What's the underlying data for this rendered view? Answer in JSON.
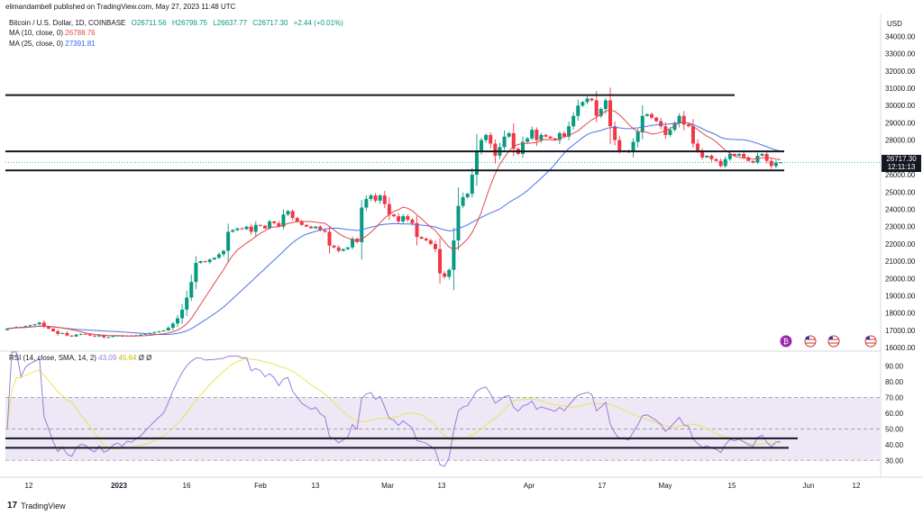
{
  "header": {
    "published": "elimandambell published on TradingView.com, May 27, 2023 11:48 UTC",
    "symbol": "Bitcoin / U.S. Dollar, 1D, COINBASE",
    "ohlc": {
      "open": "O26711.56",
      "high": "H26799.75",
      "low": "L26637.77",
      "close": "C26717.30",
      "change": "+2.44 (+0.01%)"
    },
    "ma10": {
      "label": "MA (10, close, 0)",
      "value": "26788.76",
      "color": "#e04848"
    },
    "ma25": {
      "label": "MA (25, close, 0)",
      "value": "27391.81",
      "color": "#2962ff"
    },
    "rsi": {
      "label": "RSI (14, close, SMA, 14, 2)",
      "value": "43.09",
      "sma": "45.64",
      "extra": "Ø Ø"
    },
    "currency": "USD"
  },
  "price_tag": {
    "price": "26717.30",
    "countdown": "12:11:13"
  },
  "brand": {
    "name": "TradingView",
    "logo": "tv-logo"
  },
  "event_icons": [
    "crypto-event-icon",
    "us-flag-icon",
    "us-flag-icon",
    "us-flag-icon"
  ],
  "colors": {
    "up": "#089981",
    "down": "#f23645",
    "ma10": "#e04848",
    "ma25": "#4a72e8",
    "rsi": "#9c7bd6",
    "rsi_sma": "#e6e65a",
    "rsi_band": "#ede7f6"
  },
  "chart_data": [
    {
      "type": "candlestick",
      "title": "Bitcoin / U.S. Dollar, 1D, COINBASE",
      "x_ticks": [
        "12",
        "2023",
        "16",
        "Feb",
        "13",
        "Mar",
        "13",
        "Apr",
        "17",
        "May",
        "15",
        "Jun",
        "12"
      ],
      "y_ticks": [
        16000,
        17000,
        18000,
        19000,
        20000,
        21000,
        22000,
        23000,
        24000,
        25000,
        26000,
        27000,
        28000,
        29000,
        30000,
        31000,
        32000,
        33000,
        34000
      ],
      "ylim": [
        15800,
        34800
      ],
      "close": [
        17100,
        17150,
        17200,
        17180,
        17250,
        17300,
        17350,
        17450,
        17200,
        17100,
        16950,
        16800,
        16850,
        16700,
        16650,
        16750,
        16800,
        16780,
        16700,
        16650,
        16720,
        16600,
        16620,
        16680,
        16700,
        16650,
        16700,
        16690,
        16720,
        16750,
        16800,
        16850,
        16900,
        16950,
        17000,
        17150,
        17400,
        17700,
        18200,
        18900,
        19800,
        20900,
        21000,
        20950,
        21100,
        21200,
        21400,
        21600,
        22700,
        22800,
        22900,
        22850,
        23000,
        22700,
        23100,
        23050,
        22900,
        23300,
        23200,
        23000,
        23700,
        23900,
        23500,
        23300,
        23100,
        23000,
        22900,
        23000,
        22800,
        22700,
        21900,
        21800,
        21600,
        21700,
        21800,
        22300,
        22100,
        24100,
        24600,
        24800,
        24500,
        24800,
        24300,
        23700,
        23600,
        23300,
        23600,
        23400,
        23200,
        22400,
        22300,
        22200,
        22000,
        21700,
        20300,
        20100,
        20500,
        22200,
        24200,
        24700,
        24900,
        26000,
        27400,
        28000,
        28300,
        27800,
        27100,
        27600,
        28200,
        28400,
        27500,
        27200,
        27900,
        28100,
        28600,
        28000,
        28300,
        28200,
        28100,
        28000,
        28400,
        28200,
        28800,
        29400,
        30000,
        30200,
        30400,
        30300,
        29400,
        29800,
        30300,
        28800,
        28000,
        27400,
        27400,
        27300,
        27900,
        28500,
        29400,
        29500,
        29300,
        29100,
        28800,
        28300,
        28600,
        29000,
        29400,
        28900,
        28800,
        27800,
        27400,
        27000,
        27100,
        26900,
        26800,
        26500,
        26900,
        27200,
        27100,
        27200,
        27000,
        26800,
        26700,
        27100,
        27200,
        26800,
        26500,
        26700,
        26717
      ],
      "rsi_ticks": [
        30,
        40,
        50,
        60,
        70,
        80,
        90
      ],
      "rsi_band": [
        30,
        70
      ],
      "rsi_last": 43.09,
      "horizontal_levels": [
        30600,
        27350,
        26250
      ],
      "rsi_support_levels": [
        44,
        38
      ]
    }
  ]
}
